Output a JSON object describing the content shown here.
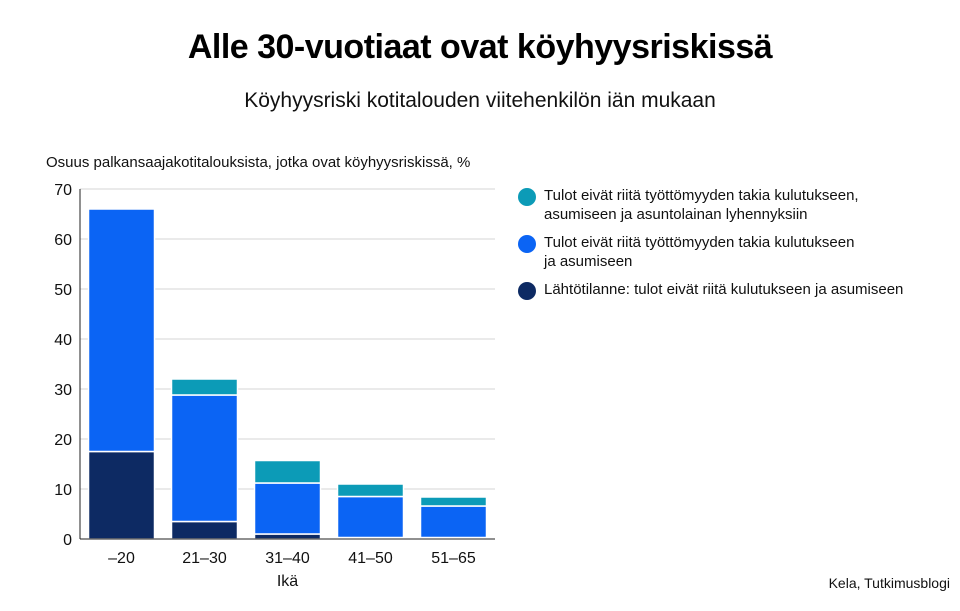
{
  "chart_data": {
    "type": "bar",
    "stacked": true,
    "title": "Alle 30-vuotiaat ovat köyhyysriskissä",
    "subtitle": "Köyhyysriski kotitalouden viitehenkilön iän mukaan",
    "ylabel": "Osuus palkansaajakotitalouksista, jotka ovat köyhyysriskissä, %",
    "xlabel": "Ikä",
    "categories": [
      "–20",
      "21–30",
      "31–40",
      "41–50",
      "51–65"
    ],
    "ylim": [
      0,
      70
    ],
    "yticks": [
      0,
      10,
      20,
      30,
      40,
      50,
      60,
      70
    ],
    "grid": true,
    "legend_position": "right",
    "series": [
      {
        "name": "Lähtötilanne: tulot eivät riitä kulutukseen ja asumiseen",
        "color": "#0d2a63",
        "values": [
          17.5,
          3.5,
          1.0,
          0.3,
          0.3
        ]
      },
      {
        "name": "Tulot eivät riitä työttömyyden takia kulutukseen\nja asumiseen",
        "color": "#0b64f4",
        "values": [
          48.5,
          25.3,
          10.2,
          8.2,
          6.3
        ]
      },
      {
        "name": "Tulot eivät riitä työttömyyden takia kulutukseen,\nasumiseen ja asuntolainan lyhennyksiin",
        "color": "#0c9bb7",
        "values": [
          0,
          3.2,
          4.5,
          2.5,
          1.8
        ]
      }
    ],
    "source": "Kela, Tutkimusblogi"
  }
}
